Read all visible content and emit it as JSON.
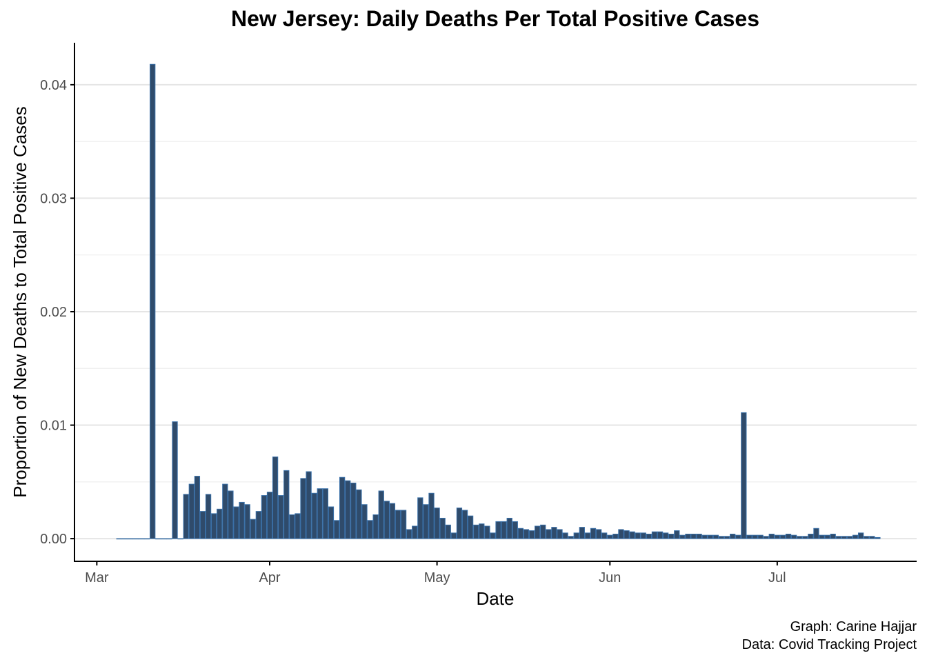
{
  "chart_data": {
    "type": "bar",
    "title": "New Jersey: Daily Deaths Per Total Positive Cases",
    "xlabel": "Date",
    "ylabel": "Proportion of New Deaths to Total Positive Cases",
    "caption": [
      "Graph: Carine Hajjar",
      "Data: Covid Tracking Project"
    ],
    "x_range": [
      "2020-02-26",
      "2020-07-26"
    ],
    "ylim": [
      -0.002,
      0.0437
    ],
    "x_ticks": [
      {
        "date": "2020-03-01",
        "label": "Mar"
      },
      {
        "date": "2020-04-01",
        "label": "Apr"
      },
      {
        "date": "2020-05-01",
        "label": "May"
      },
      {
        "date": "2020-06-01",
        "label": "Jun"
      },
      {
        "date": "2020-07-01",
        "label": "Jul"
      }
    ],
    "y_ticks": [
      {
        "value": 0.0,
        "label": "0.00"
      },
      {
        "value": 0.01,
        "label": "0.01"
      },
      {
        "value": 0.02,
        "label": "0.02"
      },
      {
        "value": 0.03,
        "label": "0.03"
      },
      {
        "value": 0.04,
        "label": "0.04"
      }
    ],
    "y_minor_ticks": [
      0.005,
      0.015,
      0.025,
      0.035
    ],
    "grid": {
      "horizontal": true,
      "vertical": false
    },
    "bar_fill": "#2f4b6b",
    "bar_outline": "#3a70a8",
    "series": [
      {
        "start_date": "2020-03-05",
        "values": [
          0,
          0,
          0,
          0,
          0,
          0,
          0.0418,
          0,
          0,
          0,
          0.0103,
          0,
          0.0039,
          0.0048,
          0.0055,
          0.0024,
          0.0039,
          0.0022,
          0.0026,
          0.0048,
          0.0042,
          0.0028,
          0.0032,
          0.003,
          0.0017,
          0.0024,
          0.0038,
          0.0041,
          0.0072,
          0.0038,
          0.006,
          0.0021,
          0.0022,
          0.0053,
          0.0059,
          0.004,
          0.0044,
          0.0044,
          0.0028,
          0.0016,
          0.0054,
          0.0051,
          0.0049,
          0.0043,
          0.003,
          0.0016,
          0.0021,
          0.0042,
          0.0033,
          0.0031,
          0.0025,
          0.0025,
          0.0008,
          0.0011,
          0.0036,
          0.003,
          0.004,
          0.0027,
          0.0018,
          0.0012,
          0.0005,
          0.0027,
          0.0025,
          0.002,
          0.0012,
          0.0013,
          0.0011,
          0.0005,
          0.0015,
          0.0015,
          0.0018,
          0.0015,
          0.0009,
          0.0008,
          0.0007,
          0.0011,
          0.0012,
          0.0008,
          0.001,
          0.0008,
          0.0005,
          0.0002,
          0.0005,
          0.001,
          0.0005,
          0.0009,
          0.0008,
          0.0005,
          0.0003,
          0.0004,
          0.0008,
          0.0007,
          0.0006,
          0.0005,
          0.0005,
          0.0004,
          0.0006,
          0.0006,
          0.0005,
          0.0004,
          0.0007,
          0.0003,
          0.0004,
          0.0004,
          0.0004,
          0.0003,
          0.0003,
          0.0003,
          0.0002,
          0.0002,
          0.0004,
          0.0003,
          0.0111,
          0.0003,
          0.0003,
          0.0003,
          0.0002,
          0.0004,
          0.0003,
          0.0003,
          0.0004,
          0.0003,
          0.0002,
          0.0002,
          0.0004,
          0.0009,
          0.0003,
          0.0003,
          0.0004,
          0.0002,
          0.0002,
          0.0002,
          0.0003,
          0.0005,
          0.0002,
          0.0002,
          0.0001
        ]
      }
    ]
  }
}
